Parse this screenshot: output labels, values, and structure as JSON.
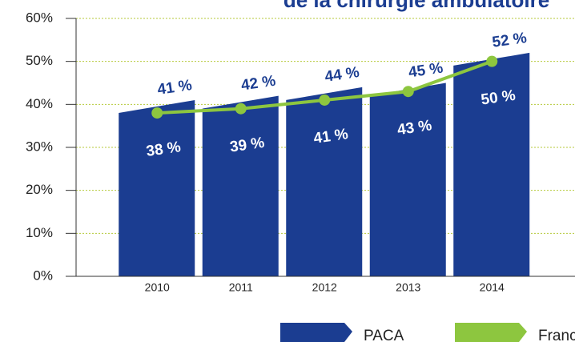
{
  "chart_data": {
    "type": "bar_line",
    "title": "de la chirurgie ambulatoire",
    "categories": [
      "2010",
      "2011",
      "2012",
      "2013",
      "2014"
    ],
    "series": [
      {
        "name": "PACA",
        "color": "#1b3d91",
        "values": [
          41,
          42,
          44,
          45,
          52
        ],
        "value_labels": [
          "41 %",
          "42 %",
          "44 %",
          "45 %",
          "52 %"
        ]
      },
      {
        "name": "France",
        "color": "#8dc63f",
        "values": [
          38,
          39,
          41,
          43,
          50
        ],
        "value_labels": [
          "38 %",
          "39 %",
          "41 %",
          "43 %",
          "50 %"
        ]
      }
    ],
    "ylim": [
      0,
      60
    ],
    "yticks": [
      {
        "value": 0,
        "label": "0%"
      },
      {
        "value": 10,
        "label": "10%"
      },
      {
        "value": 20,
        "label": "20%"
      },
      {
        "value": 30,
        "label": "30%"
      },
      {
        "value": 40,
        "label": "40%"
      },
      {
        "value": 50,
        "label": "50%"
      },
      {
        "value": 60,
        "label": "60%"
      }
    ],
    "grid": true
  }
}
